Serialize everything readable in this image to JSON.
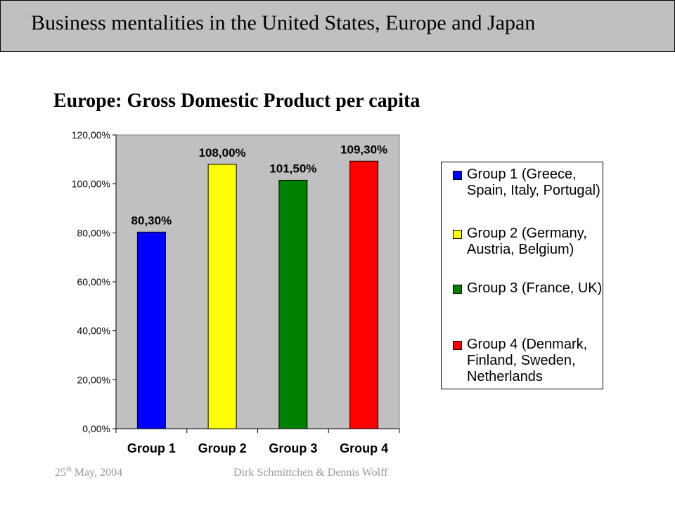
{
  "slide": {
    "title": "Business mentalities in the United States, Europe and Japan",
    "footer_day": "25",
    "footer_day_suffix": "th",
    "footer_date_rest": " May, 2004",
    "footer_authors": "Dirk Schmittchen & Dennis Wolff"
  },
  "colors": {
    "header_band": "#c0c0c0",
    "plot_area": "#c0c0c0",
    "footer_text": "#999999"
  },
  "chart_data": {
    "type": "bar",
    "title": "Europe: Gross Domestic Product per capita",
    "categories": [
      "Group 1",
      "Group 2",
      "Group 3",
      "Group 4"
    ],
    "values": [
      80.3,
      108.0,
      101.5,
      109.3
    ],
    "data_labels": [
      "80,30%",
      "108,00%",
      "101,50%",
      "109,30%"
    ],
    "bar_colors": [
      "#0000ff",
      "#ffff00",
      "#008000",
      "#ff0000"
    ],
    "ylim": [
      0,
      120
    ],
    "yticks": [
      0,
      20,
      40,
      60,
      80,
      100,
      120
    ],
    "ytick_labels": [
      "0,00%",
      "20,00%",
      "40,00%",
      "60,00%",
      "80,00%",
      "100,00%",
      "120,00%"
    ],
    "xlabel": "",
    "ylabel": "",
    "grid": false,
    "legend_position": "right",
    "legend": [
      {
        "label": "Group 1 (Greece, Spain, Italy, Portugal)",
        "color": "#0000ff"
      },
      {
        "label": "Group 2 (Germany, Austria, Belgium)",
        "color": "#ffff00"
      },
      {
        "label": "Group 3 (France, UK)",
        "color": "#008000"
      },
      {
        "label": "Group 4 (Denmark, Finland, Sweden, Netherlands",
        "color": "#ff0000"
      }
    ]
  }
}
